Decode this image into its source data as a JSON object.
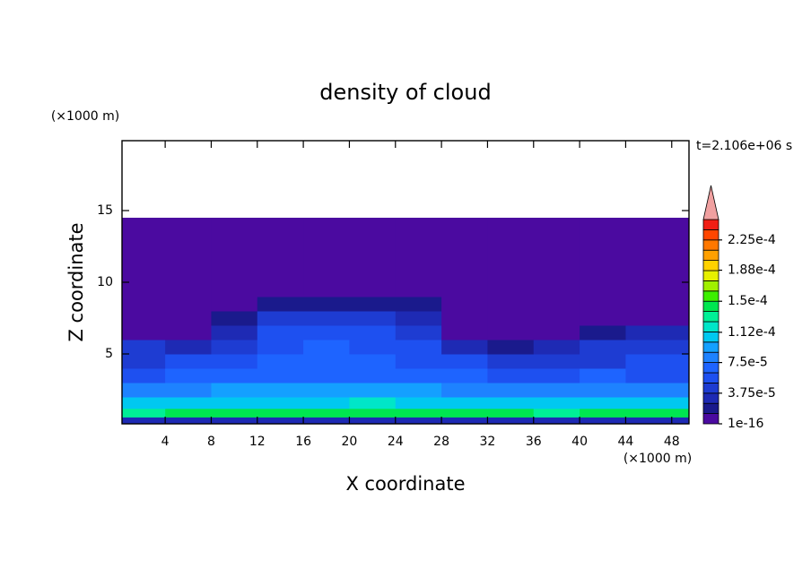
{
  "chart_data": {
    "type": "contour",
    "title": "density of cloud",
    "xlabel": "X coordinate",
    "ylabel": "Z coordinate",
    "x_unit": "(×1000 m)",
    "y_unit": "(×1000 m)",
    "annotation": "t=2.106e+06 s",
    "xlim": [
      0.25,
      49.5
    ],
    "ylim": [
      0.125,
      19.875
    ],
    "xticks": [
      4,
      8,
      12,
      16,
      20,
      24,
      28,
      32,
      36,
      40,
      44,
      48
    ],
    "yticks": [
      5,
      10,
      15
    ],
    "x_edges": [
      0.25,
      4,
      8,
      12,
      16,
      20,
      24,
      28,
      32,
      36,
      40,
      44,
      49.5
    ],
    "y_edges": [
      0.125,
      0.6,
      1.2,
      2,
      3,
      4,
      5,
      6,
      7,
      8,
      9,
      14.5
    ],
    "z": [
      [
        3e-05,
        3.2e-05,
        2.8e-05,
        3e-05,
        3.3e-05,
        3e-05,
        2.9e-05,
        3.1e-05,
        3e-05,
        2.8e-05,
        3e-05,
        3.2e-05
      ],
      [
        0.000135,
        0.00014,
        0.000145,
        0.00014,
        0.00015,
        0.000145,
        0.00014,
        0.000145,
        0.00014,
        0.000135,
        0.00014,
        0.000138
      ],
      [
        0.000105,
        0.00011,
        0.000108,
        0.000112,
        0.00011,
        0.000115,
        0.00011,
        0.000105,
        0.000108,
        0.00011,
        0.000105,
        0.000108
      ],
      [
        8e-05,
        8.5e-05,
        8.8e-05,
        9e-05,
        9.2e-05,
        9e-05,
        8.8e-05,
        8.5e-05,
        8.2e-05,
        8e-05,
        8.3e-05,
        8e-05
      ],
      [
        6.2e-05,
        6.5e-05,
        7e-05,
        7.2e-05,
        7.5e-05,
        7.3e-05,
        7e-05,
        6.5e-05,
        6.2e-05,
        6e-05,
        6.3e-05,
        6.2e-05
      ],
      [
        5e-05,
        5.2e-05,
        6e-05,
        6.5e-05,
        6.8e-05,
        6.6e-05,
        6.2e-05,
        5.5e-05,
        4.5e-05,
        4e-05,
        5e-05,
        5.2e-05
      ],
      [
        4e-05,
        3e-05,
        5e-05,
        6e-05,
        6.3e-05,
        6e-05,
        5.5e-05,
        3e-05,
        2.5e-05,
        3e-05,
        4e-05,
        4.5e-05
      ],
      [
        5e-06,
        5e-06,
        3e-05,
        5.5e-05,
        5.8e-05,
        5.5e-05,
        4.5e-05,
        5e-06,
        5e-06,
        5e-06,
        2e-05,
        3e-05
      ],
      [
        5e-06,
        5e-06,
        2e-05,
        4e-05,
        4.5e-05,
        4.2e-05,
        3e-05,
        5e-06,
        5e-06,
        5e-06,
        5e-06,
        5e-06
      ],
      [
        5e-06,
        5e-06,
        5e-06,
        2e-05,
        2.5e-05,
        2e-05,
        1.5e-05,
        5e-06,
        5e-06,
        5e-06,
        5e-06,
        5e-06
      ],
      [
        5e-06,
        5e-06,
        5e-06,
        5e-06,
        5e-06,
        5e-06,
        5e-06,
        5e-06,
        5e-06,
        5e-06,
        5e-06,
        5e-06
      ]
    ],
    "clim": [
      1e-16,
      0.00025
    ],
    "cticks": [
      {
        "value": 1e-16,
        "label": "1e-16"
      },
      {
        "value": 3.75e-05,
        "label": "3.75e-5"
      },
      {
        "value": 7.5e-05,
        "label": "7.5e-5"
      },
      {
        "value": 0.000112,
        "label": "1.12e-4"
      },
      {
        "value": 0.00015,
        "label": "1.5e-4"
      },
      {
        "value": 0.000188,
        "label": "1.88e-4"
      },
      {
        "value": 0.000225,
        "label": "2.25e-4"
      }
    ],
    "colors": [
      "#4b0aa0",
      "#1a1a8c",
      "#1e2ab4",
      "#1e3cd2",
      "#1e50f0",
      "#1e64ff",
      "#1e82ff",
      "#14a0ff",
      "#00c8f0",
      "#00e6c8",
      "#00f096",
      "#00e650",
      "#3cf000",
      "#a0f000",
      "#e6f000",
      "#ffd200",
      "#ffa000",
      "#ff7800",
      "#ff4600",
      "#f01e14"
    ],
    "extend_color": "#f0a0a0"
  }
}
